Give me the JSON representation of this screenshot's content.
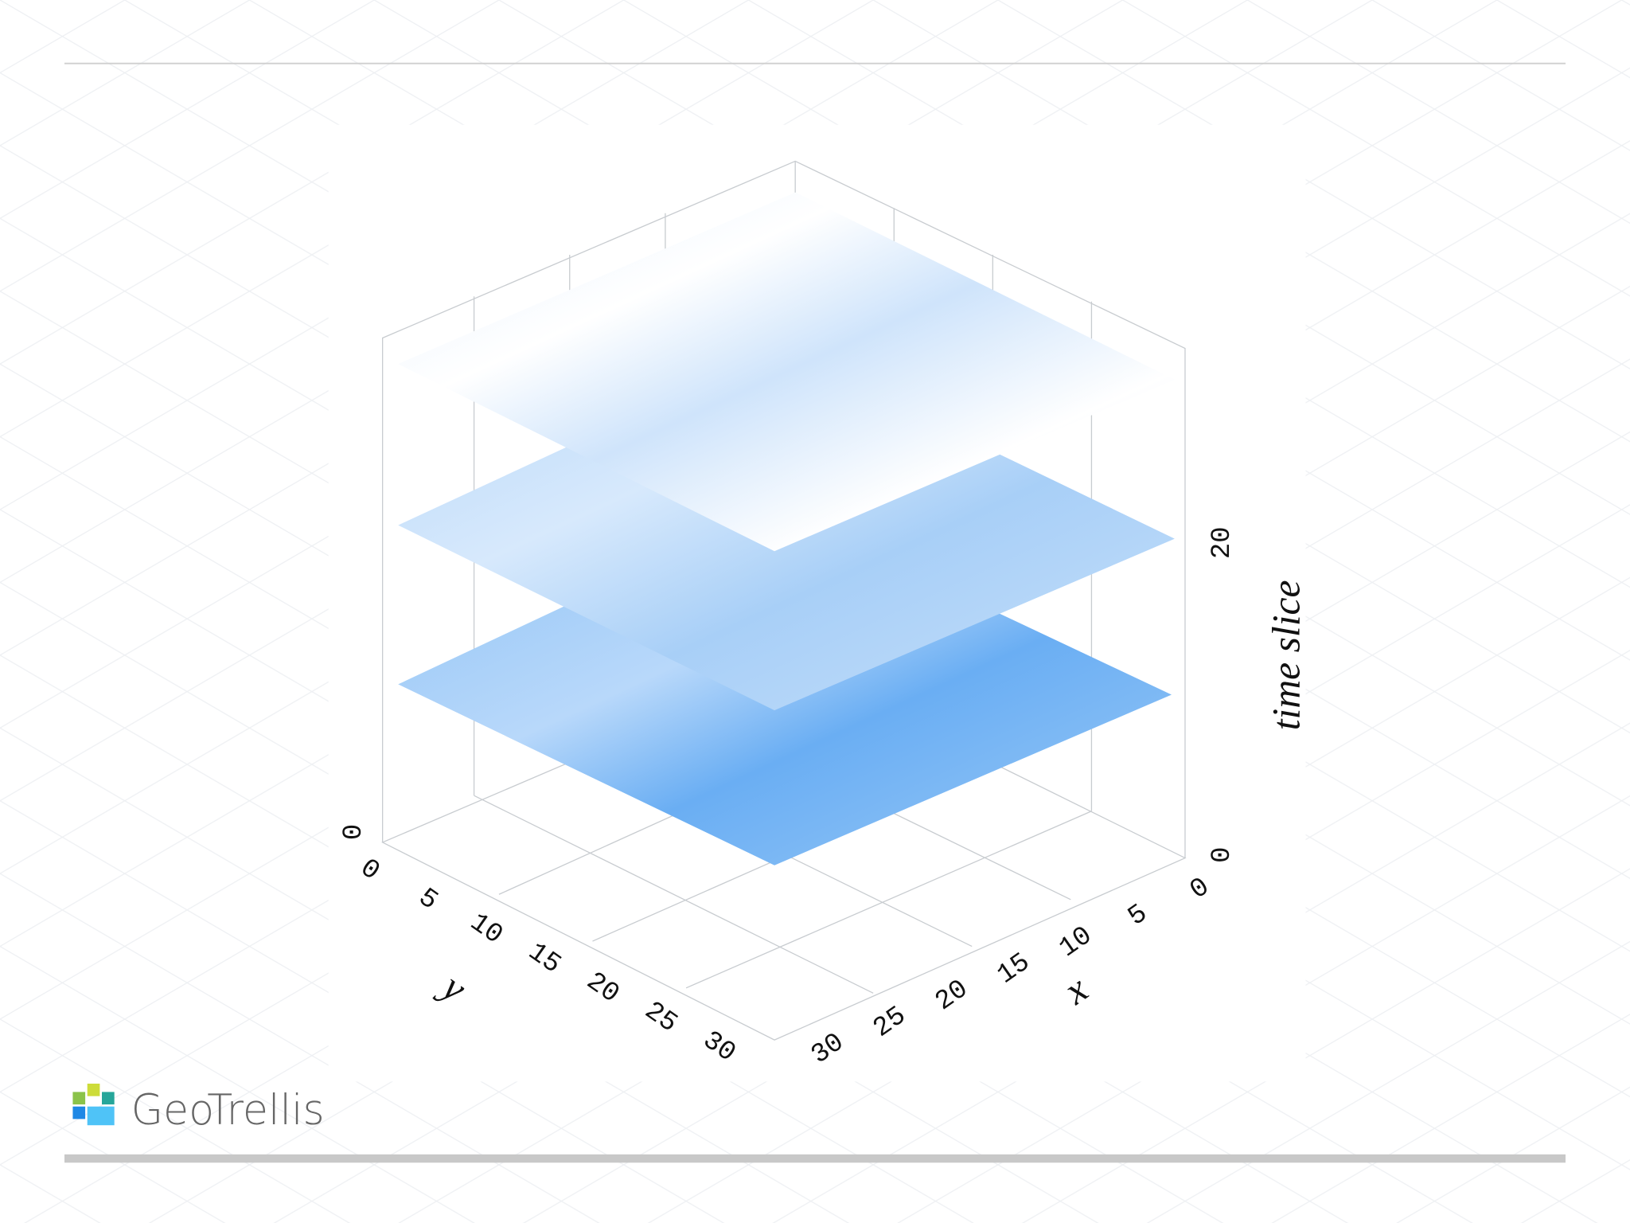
{
  "plot": {
    "y_axis": {
      "label": "y",
      "ticks": [
        0,
        5,
        10,
        15,
        20,
        25,
        30
      ]
    },
    "x_axis": {
      "label": "x",
      "ticks": [
        0,
        5,
        10,
        15,
        20,
        25,
        30
      ]
    },
    "z_axis": {
      "label": "time slice",
      "ticks": [
        0,
        20
      ],
      "corner_tick": 0
    }
  },
  "logo": {
    "text": "GeoTrellis"
  }
}
